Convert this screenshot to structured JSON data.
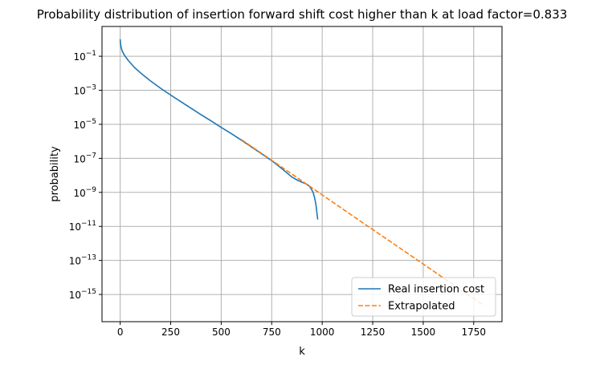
{
  "chart_data": {
    "type": "line",
    "title": "Probability distribution of insertion forward shift cost higher than k at load factor=0.833",
    "xlabel": "k",
    "ylabel": "probability",
    "xlim": [
      -90,
      1890
    ],
    "ylim_exp": [
      -16.6,
      0.75
    ],
    "yscale": "log",
    "grid": true,
    "legend_position": "lower-right",
    "x_ticks": [
      0,
      250,
      500,
      750,
      1000,
      1250,
      1500,
      1750
    ],
    "x_tick_labels": [
      "0",
      "250",
      "500",
      "750",
      "1000",
      "1250",
      "1500",
      "1750"
    ],
    "y_ticks_exp": [
      -1,
      -3,
      -5,
      -7,
      -9,
      -11,
      -13,
      -15
    ],
    "y_tick_labels": [
      {
        "base": "10",
        "exp": "−1"
      },
      {
        "base": "10",
        "exp": "−3"
      },
      {
        "base": "10",
        "exp": "−5"
      },
      {
        "base": "10",
        "exp": "−7"
      },
      {
        "base": "10",
        "exp": "−9"
      },
      {
        "base": "10",
        "exp": "−11"
      },
      {
        "base": "10",
        "exp": "−13"
      },
      {
        "base": "10",
        "exp": "−15"
      }
    ],
    "series": [
      {
        "name": "Real insertion cost",
        "color": "#1f77b4",
        "style": "solid",
        "x": [
          0,
          2,
          5,
          10,
          20,
          40,
          70,
          100,
          150,
          200,
          250,
          300,
          350,
          400,
          450,
          500,
          550,
          600,
          650,
          700,
          750,
          800,
          850,
          880,
          900,
          920,
          935,
          945,
          955,
          962,
          968,
          972,
          975,
          978
        ],
        "log10_y": [
          0.0,
          -0.3,
          -0.5,
          -0.7,
          -0.93,
          -1.25,
          -1.65,
          -1.97,
          -2.45,
          -2.88,
          -3.28,
          -3.67,
          -4.05,
          -4.43,
          -4.8,
          -5.18,
          -5.55,
          -5.93,
          -6.33,
          -6.73,
          -7.14,
          -7.6,
          -8.1,
          -8.3,
          -8.4,
          -8.5,
          -8.62,
          -8.78,
          -9.0,
          -9.3,
          -9.65,
          -10.0,
          -10.35,
          -10.6
        ]
      },
      {
        "name": "Extrapolated",
        "color": "#ff7f0e",
        "style": "dashed",
        "x": [
          600,
          700,
          800,
          900,
          1000,
          1200,
          1400,
          1600,
          1800
        ],
        "log10_y": [
          -5.9,
          -6.71,
          -7.52,
          -8.33,
          -9.15,
          -10.78,
          -12.4,
          -14.03,
          -15.65
        ]
      }
    ]
  }
}
